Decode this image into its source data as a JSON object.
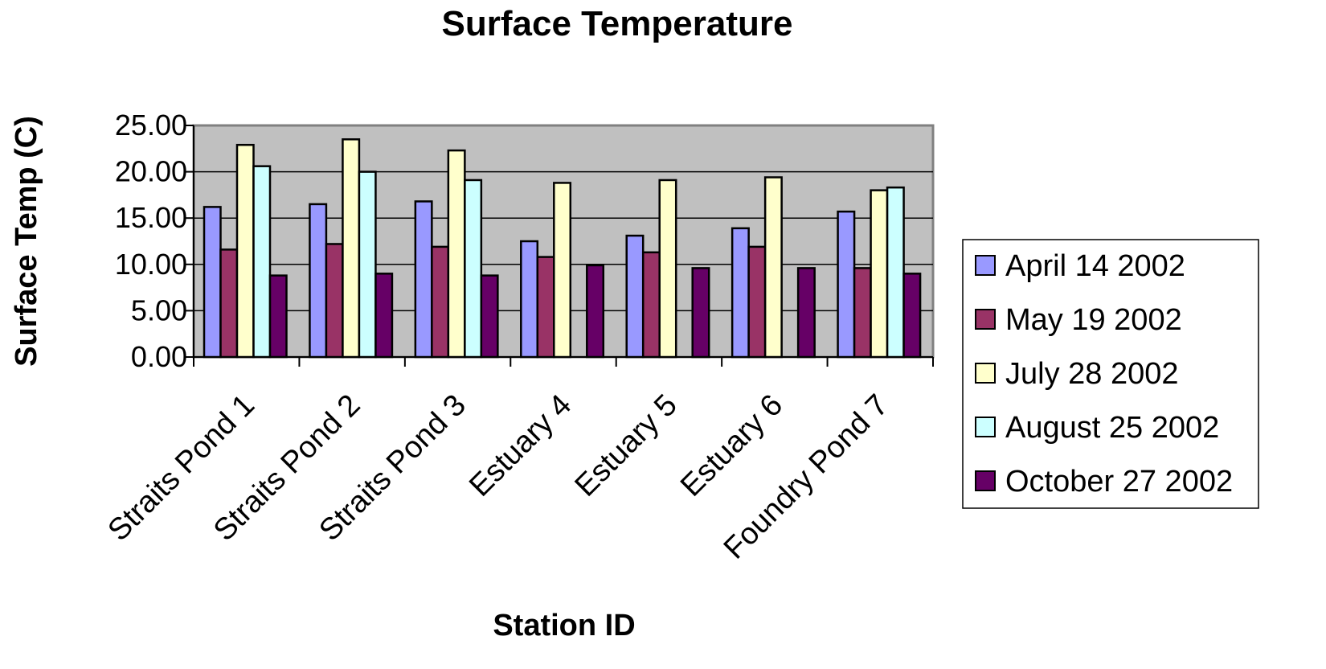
{
  "chart_data": {
    "type": "bar",
    "title": "Surface Temperature",
    "xlabel": "Station ID",
    "ylabel": "Surface Temp (C)",
    "ylim": [
      0,
      25
    ],
    "yticks": [
      "0.00",
      "5.00",
      "10.00",
      "15.00",
      "20.00",
      "25.00"
    ],
    "grid": true,
    "legend_position": "right",
    "categories": [
      "Straits Pond 1",
      "Straits Pond 2",
      "Straits Pond 3",
      "Estuary 4",
      "Estuary 5",
      "Estuary 6",
      "Foundry Pond  7"
    ],
    "series": [
      {
        "name": "April 14 2002",
        "color": "#9999FF",
        "values": [
          16.2,
          16.5,
          16.8,
          12.5,
          13.1,
          13.9,
          15.7
        ]
      },
      {
        "name": "May 19 2002",
        "color": "#993366",
        "values": [
          11.6,
          12.2,
          11.9,
          10.8,
          11.3,
          11.9,
          9.6
        ]
      },
      {
        "name": "July 28 2002",
        "color": "#FFFFCC",
        "values": [
          22.9,
          23.5,
          22.3,
          18.8,
          19.1,
          19.4,
          18.0
        ]
      },
      {
        "name": "August 25 2002",
        "color": "#CCFFFF",
        "values": [
          20.6,
          20.0,
          19.1,
          null,
          null,
          null,
          18.3
        ]
      },
      {
        "name": "October 27 2002",
        "color": "#660066",
        "values": [
          8.8,
          9.0,
          8.8,
          9.9,
          9.6,
          9.6,
          9.0
        ]
      }
    ],
    "plot_background": "#C0C0C0"
  }
}
